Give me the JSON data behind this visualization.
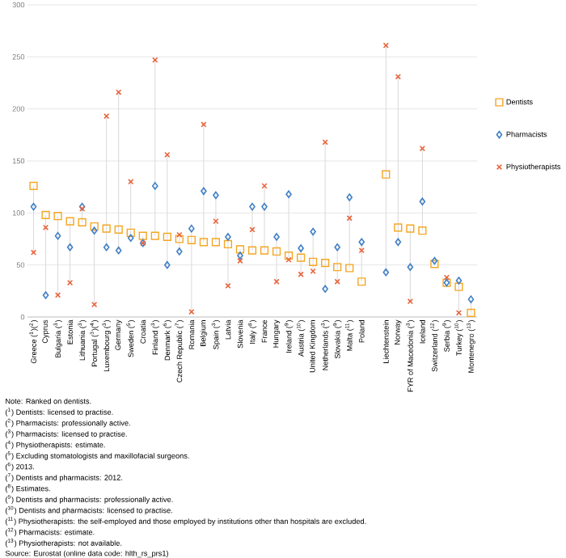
{
  "chart_data": {
    "type": "scatter",
    "categories": [
      "Greece ($^{1}$)($^{2}$)",
      "Cyprus",
      "Bulgaria ($^{3}$)",
      "Estonia",
      "Lithuania ($^{3}$)",
      "Portugal ($^{3}$)($^{4}$)",
      "Luxembourg ($^{3}$)",
      "Germany",
      "Sweden ($^{5}$)",
      "Croatia",
      "Finland ($^{3}$)",
      "Denmark ($^{6}$)",
      "Czech Republic ($^{7}$)",
      "Romania",
      "Belgium",
      "Spain ($^{3}$)",
      "Latvia",
      "Slovenia",
      "Italy ($^{8}$)",
      "France",
      "Hungary",
      "Ireland ($^{9}$)",
      "Austria ($^{10}$)",
      "United Kingdom",
      "Netherlands ($^{3}$)",
      "Slovakia ($^{9}$)",
      "Malta ($^{11}$)",
      "Poland",
      null,
      "Liechtenstein",
      "Norway",
      "FYR of Macedonia ($^{3}$)",
      "Iceland",
      "Switzerland ($^{12}$)",
      "Serbia ($^{9}$)",
      "Turkey ($^{10}$)",
      "Montenegro ($^{13}$)"
    ],
    "series": [
      {
        "name": "Dentists",
        "color": "#f5a623",
        "marker": "square",
        "values": [
          126,
          98,
          97,
          92,
          91,
          87,
          85,
          84,
          81,
          78,
          78,
          77,
          75,
          74,
          72,
          72,
          70,
          65,
          64,
          64,
          63,
          59,
          57,
          53,
          52,
          48,
          47,
          34,
          null,
          137,
          86,
          85,
          83,
          51,
          33,
          29,
          4
        ]
      },
      {
        "name": "Pharmacists",
        "color": "#3f7fc7",
        "marker": "diamond",
        "values": [
          106,
          21,
          78,
          67,
          106,
          83,
          67,
          64,
          76,
          71,
          126,
          50,
          63,
          85,
          121,
          117,
          77,
          59,
          106,
          106,
          77,
          118,
          66,
          82,
          27,
          67,
          115,
          72,
          null,
          43,
          72,
          48,
          111,
          54,
          33,
          35,
          17
        ]
      },
      {
        "name": "Physiotherapists",
        "color": "#e8643c",
        "marker": "cross",
        "values": [
          62,
          86,
          21,
          33,
          104,
          12,
          193,
          216,
          130,
          71,
          247,
          156,
          79,
          5,
          185,
          92,
          30,
          54,
          84,
          126,
          34,
          55,
          41,
          44,
          168,
          34,
          95,
          64,
          null,
          261,
          231,
          15,
          162,
          null,
          38,
          4,
          null
        ]
      }
    ],
    "ylim": [
      0,
      300
    ],
    "yticks": [
      0,
      50,
      100,
      150,
      200,
      250,
      300
    ],
    "grid": "y",
    "legend": "right",
    "annotations": [
      "Note: Ranked on dentists.",
      "($^{1}$) Dentists: licensed to practise.",
      "($^{2}$) Pharmacists: professionally active.",
      "($^{3}$) Pharmacists: licensed to practise.",
      "($^{4}$) Physiotherapists: estimate.",
      "($^{5}$) Excluding stomatologists and maxillofacial surgeons.",
      "($^{6}$) 2013.",
      "($^{7}$) Dentists and pharmacists: 2012.",
      "($^{8}$) Estimates.",
      "($^{9}$) Dentists and pharmacists: professionally active.",
      "($^{10}$) Dentists and pharmacists: licensed to practise.",
      "($^{11}$) Physiotherapists: the self-employed and those employed by institutions other than hospitals are excluded.",
      "($^{12}$) Pharmacists: estimate.",
      "($^{13}$) Physiotherapists: not available.",
      "Source:  Eurostat (online data code: hlth_rs_prs1)"
    ]
  }
}
